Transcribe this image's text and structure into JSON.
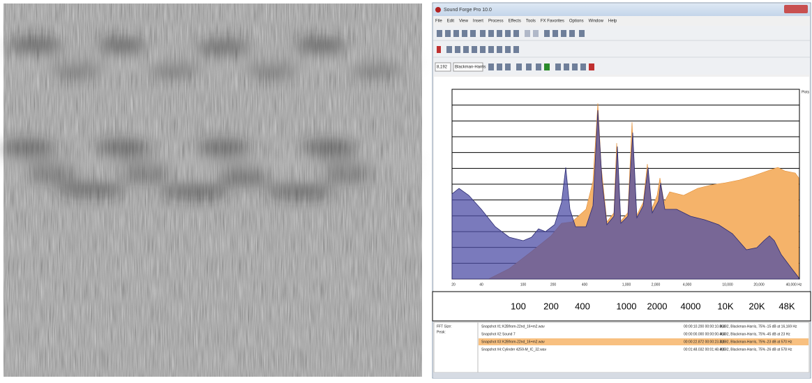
{
  "window": {
    "title": "Sound Forge Pro 10.0"
  },
  "menu": [
    "File",
    "Edit",
    "View",
    "Insert",
    "Process",
    "Effects",
    "Tools",
    "FX Favorites",
    "Options",
    "Window",
    "Help"
  ],
  "toolbar": {
    "fft_size": "8,192",
    "window": "Blackman-Harris"
  },
  "plot": {
    "unit": "Plots",
    "x_labels": [
      "20",
      "40",
      "100",
      "200",
      "400",
      "1,000",
      "2,000",
      "4,000",
      "10,000",
      "20,000",
      "40,000 Hz"
    ]
  },
  "freq_strip": [
    "100",
    "200",
    "400",
    "1000",
    "2000",
    "4000",
    "10K",
    "20K",
    "48K"
  ],
  "snapshots": {
    "labels": [
      "FFT Size:",
      "Peak:"
    ],
    "rows": [
      [
        "Snapshot #1:",
        "K2Bfrom-22nd_16+m2.wav",
        "00:00:10.200 00:00:10.864",
        "8,192, Blackman-Harris, 75%",
        "-15 dB at 16,169 Hz"
      ],
      [
        "Snapshot #2:",
        "Sound 7",
        "00:00:00.000 00:00:00.464",
        "8,192, Blackman-Harris, 75%",
        "-45 dB at 23 Hz"
      ],
      [
        "Snapshot #3:",
        "K2Bfrom-22nd_16+m2.wav",
        "00:00:22.872 00:00:23.336",
        "8,192, Blackman-Harris, 75%",
        "-23 dB at 570 Hz"
      ],
      [
        "Snapshot #4:",
        "Cylinder 4259-M_IC_32.wav",
        "00:01:48.032 00:01:48.496",
        "8,192, Blackman-Harris, 75%",
        "-26 dB at 578 Hz"
      ]
    ]
  }
}
